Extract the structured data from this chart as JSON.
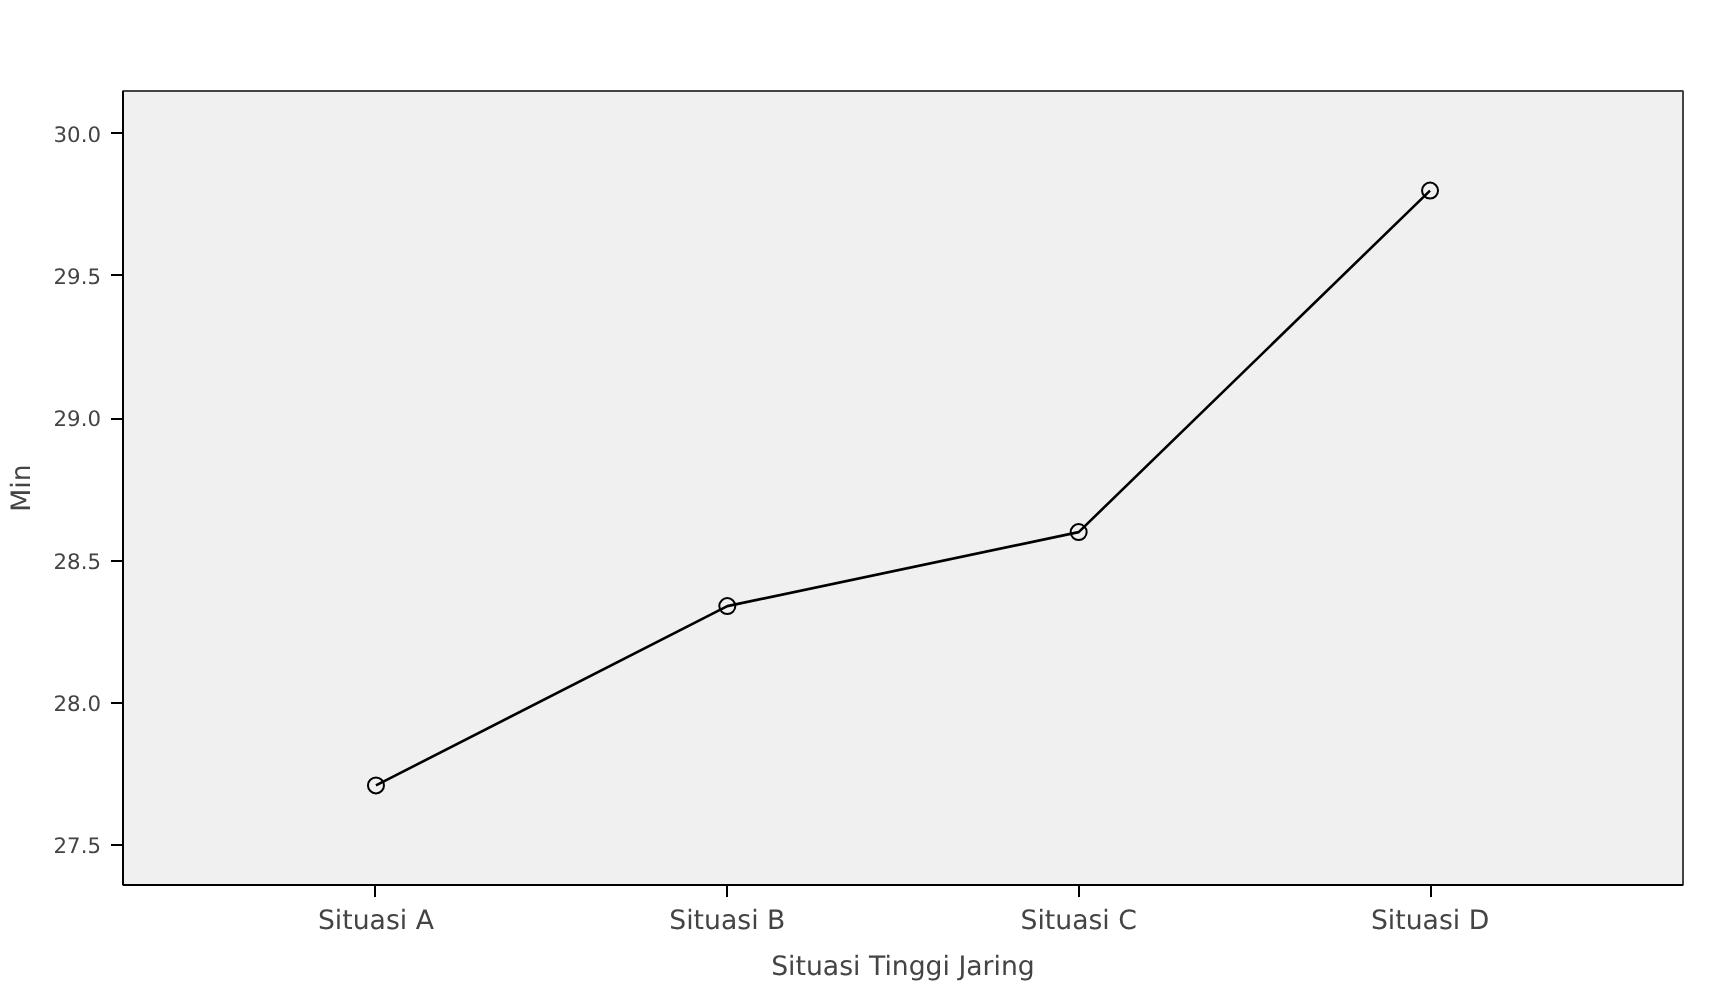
{
  "chart_data": {
    "type": "line",
    "xlabel": "Situasi Tinggi Jaring",
    "ylabel": "Min",
    "categories": [
      "Situasi A",
      "Situasi B",
      "Situasi C",
      "Situasi D"
    ],
    "series": [
      {
        "color": "#000000",
        "values": [
          27.71,
          28.34,
          28.6,
          29.8
        ]
      }
    ],
    "ylim": [
      27.36,
      30.15
    ],
    "yticks": [
      {
        "value": 27.5,
        "label": "27.5"
      },
      {
        "value": 28.0,
        "label": "28.0"
      },
      {
        "value": 28.5,
        "label": "28.5"
      },
      {
        "value": 29.0,
        "label": "29.0"
      },
      {
        "value": 29.5,
        "label": "29.5"
      },
      {
        "value": 30.0,
        "label": "30.0"
      }
    ],
    "grid": false,
    "marker": "circle",
    "line_style": "solid"
  }
}
